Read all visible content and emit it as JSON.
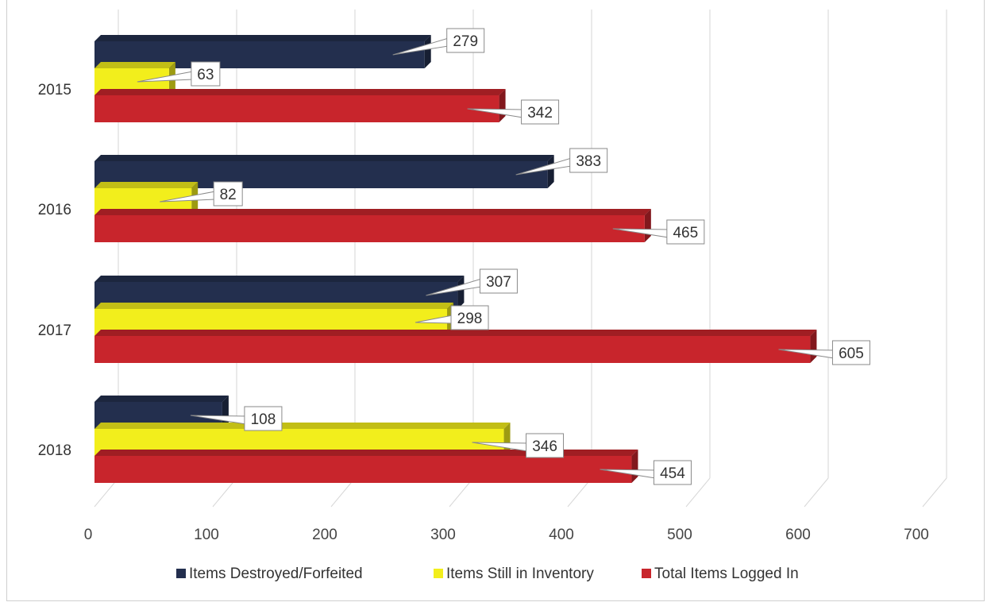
{
  "chart_data": {
    "type": "bar",
    "orientation": "horizontal",
    "categories": [
      "2015",
      "2016",
      "2017",
      "2018"
    ],
    "series": [
      {
        "name": "Items Destroyed/Forfeited",
        "values": [
          279,
          383,
          307,
          108
        ]
      },
      {
        "name": "Items Still in Inventory",
        "values": [
          63,
          82,
          298,
          346
        ]
      },
      {
        "name": "Total Items Logged In",
        "values": [
          342,
          465,
          605,
          454
        ]
      }
    ],
    "xticks": [
      "0",
      "100",
      "200",
      "300",
      "400",
      "500",
      "600",
      "700"
    ],
    "xlim": [
      0,
      700
    ],
    "grid": true,
    "legend_position": "bottom",
    "data_labels": true,
    "colors": {
      "Items Destroyed/Forfeited": "#232f4e",
      "Items Still in Inventory": "#f2ee1c",
      "Total Items Logged In": "#c8252c"
    }
  }
}
